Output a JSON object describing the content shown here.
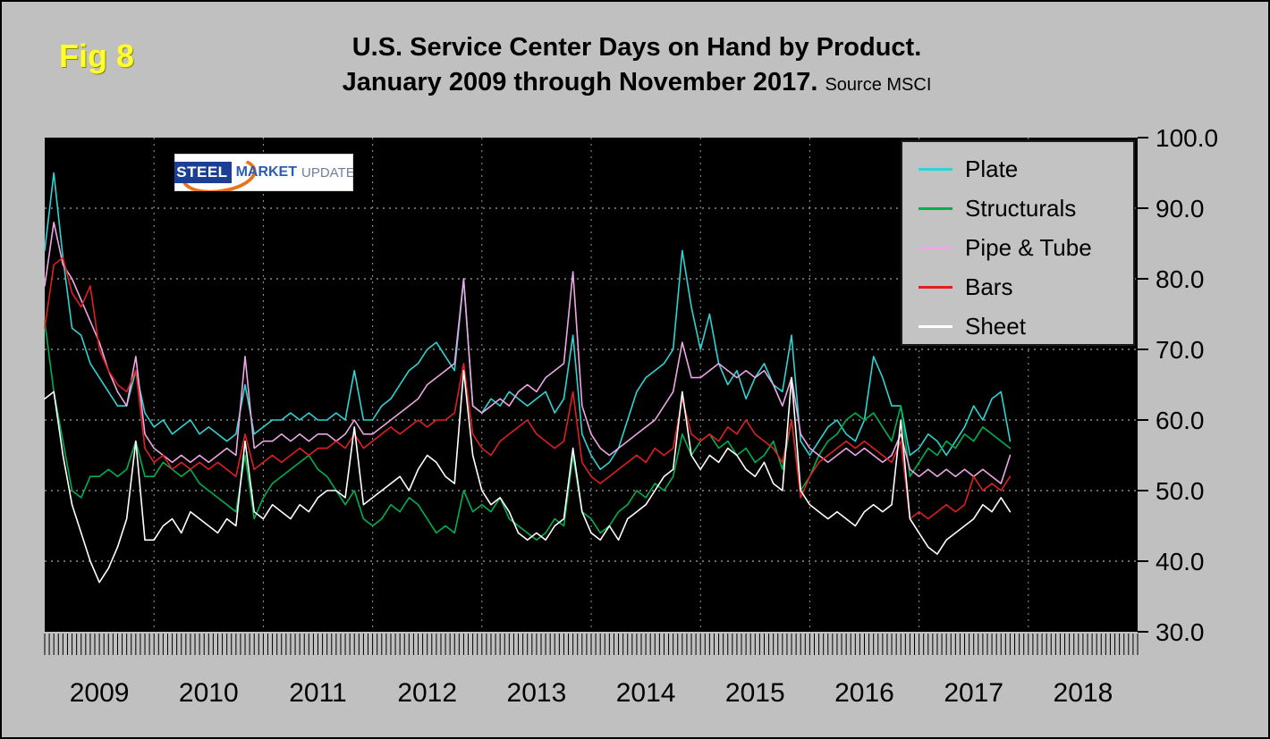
{
  "fig_label": "Fig 8",
  "title": {
    "line1": "U.S. Service Center Days on Hand by Product.",
    "line2": "January 2009 through November 2017.",
    "source": "Source MSCI"
  },
  "logo": {
    "word1": "STEEL",
    "word2": "MARKET",
    "word3": "UPDATE"
  },
  "colors": {
    "page_background": "#c0c0c0",
    "plot_background": "#000000",
    "grid_horizontal": "#cfcfcf",
    "grid_vertical": "#9a9a9a",
    "axis_text": "#000000"
  },
  "chart_data": {
    "type": "line",
    "title": "U.S. Service Center Days on Hand by Product. January 2009 through November 2017.",
    "source": "MSCI",
    "x_start": "2009-01",
    "x_end": "2017-11",
    "frequency": "monthly",
    "x_axis_years": [
      "2009",
      "2010",
      "2011",
      "2012",
      "2013",
      "2014",
      "2015",
      "2016",
      "2017",
      "2018"
    ],
    "ylim": [
      30,
      100
    ],
    "y_ticks": [
      "100.0",
      "90.0",
      "80.0",
      "70.0",
      "60.0",
      "50.0",
      "40.0",
      "30.0"
    ],
    "grid": true,
    "legend_position": "top-right",
    "series": [
      {
        "name": "Plate",
        "color": "#2ed3d3",
        "values": [
          84,
          95,
          83,
          73,
          72,
          68,
          66,
          64,
          62,
          62,
          67,
          61,
          59,
          60,
          58,
          59,
          60,
          58,
          59,
          58,
          57,
          58,
          65,
          58,
          59,
          60,
          60,
          61,
          60,
          61,
          60,
          60,
          61,
          60,
          67,
          60,
          60,
          62,
          63,
          65,
          67,
          68,
          70,
          71,
          69,
          67,
          80,
          62,
          61,
          63,
          62,
          64,
          63,
          62,
          63,
          64,
          61,
          63,
          72,
          58,
          55,
          53,
          54,
          56,
          60,
          64,
          66,
          67,
          68,
          70,
          84,
          76,
          70,
          75,
          68,
          65,
          67,
          63,
          66,
          68,
          65,
          64,
          72,
          57,
          55,
          57,
          59,
          60,
          58,
          57,
          60,
          69,
          66,
          62,
          62,
          55,
          56,
          58,
          57,
          55,
          57,
          59,
          62,
          60,
          63,
          64,
          57
        ]
      },
      {
        "name": "Structurals",
        "color": "#00b050",
        "values": [
          74,
          64,
          57,
          50,
          49,
          52,
          52,
          53,
          52,
          53,
          57,
          52,
          52,
          54,
          53,
          52,
          53,
          51,
          50,
          49,
          48,
          47,
          55,
          46,
          49,
          51,
          52,
          53,
          54,
          55,
          53,
          52,
          50,
          48,
          50,
          46,
          45,
          46,
          48,
          47,
          49,
          48,
          46,
          44,
          45,
          44,
          50,
          47,
          48,
          47,
          49,
          46,
          45,
          44,
          43,
          44,
          46,
          45,
          55,
          47,
          46,
          44,
          45,
          47,
          48,
          50,
          49,
          51,
          50,
          52,
          58,
          55,
          57,
          58,
          56,
          57,
          55,
          56,
          54,
          55,
          57,
          53,
          60,
          50,
          52,
          55,
          57,
          58,
          60,
          61,
          60,
          61,
          59,
          57,
          62,
          52,
          54,
          56,
          55,
          57,
          56,
          58,
          57,
          59,
          58,
          57,
          56
        ]
      },
      {
        "name": "Pipe & Tube",
        "color": "#eda6e4",
        "values": [
          79,
          88,
          82,
          80,
          77,
          74,
          71,
          67,
          64,
          62,
          69,
          58,
          56,
          55,
          54,
          55,
          54,
          55,
          54,
          55,
          56,
          55,
          69,
          56,
          57,
          57,
          58,
          57,
          58,
          57,
          58,
          58,
          57,
          58,
          60,
          58,
          58,
          59,
          60,
          61,
          62,
          63,
          65,
          66,
          67,
          68,
          80,
          62,
          61,
          62,
          63,
          62,
          64,
          65,
          64,
          66,
          67,
          68,
          81,
          62,
          58,
          56,
          55,
          56,
          57,
          58,
          59,
          60,
          62,
          64,
          71,
          66,
          66,
          67,
          68,
          67,
          66,
          67,
          66,
          67,
          65,
          62,
          66,
          58,
          56,
          55,
          54,
          55,
          56,
          55,
          56,
          55,
          54,
          55,
          58,
          53,
          52,
          53,
          52,
          53,
          52,
          53,
          52,
          53,
          52,
          51,
          55
        ]
      },
      {
        "name": "Bars",
        "color": "#e01f1f",
        "values": [
          73,
          82,
          83,
          78,
          76,
          79,
          70,
          67,
          65,
          64,
          67,
          56,
          54,
          55,
          53,
          54,
          53,
          54,
          53,
          54,
          53,
          52,
          58,
          53,
          54,
          55,
          54,
          55,
          56,
          55,
          56,
          56,
          57,
          56,
          58,
          56,
          57,
          58,
          59,
          58,
          59,
          60,
          59,
          60,
          60,
          61,
          68,
          58,
          56,
          55,
          57,
          58,
          59,
          60,
          58,
          57,
          56,
          57,
          64,
          54,
          52,
          51,
          52,
          53,
          54,
          55,
          54,
          56,
          55,
          56,
          63,
          58,
          57,
          58,
          57,
          59,
          58,
          60,
          58,
          57,
          56,
          54,
          60,
          49,
          52,
          54,
          55,
          56,
          57,
          56,
          57,
          56,
          55,
          54,
          57,
          46,
          47,
          46,
          47,
          48,
          47,
          48,
          52,
          50,
          51,
          50,
          52
        ]
      },
      {
        "name": "Sheet",
        "color": "#ffffff",
        "values": [
          63,
          64,
          55,
          48,
          44,
          40,
          37,
          39,
          42,
          46,
          57,
          43,
          43,
          45,
          46,
          44,
          47,
          46,
          45,
          44,
          46,
          45,
          57,
          47,
          46,
          48,
          47,
          46,
          48,
          47,
          49,
          50,
          50,
          49,
          59,
          48,
          49,
          50,
          51,
          52,
          50,
          53,
          55,
          54,
          52,
          51,
          67,
          55,
          50,
          48,
          49,
          47,
          44,
          43,
          44,
          43,
          45,
          46,
          56,
          47,
          44,
          43,
          45,
          43,
          46,
          47,
          48,
          50,
          52,
          53,
          64,
          55,
          53,
          55,
          54,
          56,
          55,
          53,
          52,
          54,
          51,
          50,
          66,
          50,
          48,
          47,
          46,
          47,
          46,
          45,
          47,
          48,
          47,
          48,
          60,
          46,
          44,
          42,
          41,
          43,
          44,
          45,
          46,
          48,
          47,
          49,
          47
        ]
      }
    ]
  }
}
